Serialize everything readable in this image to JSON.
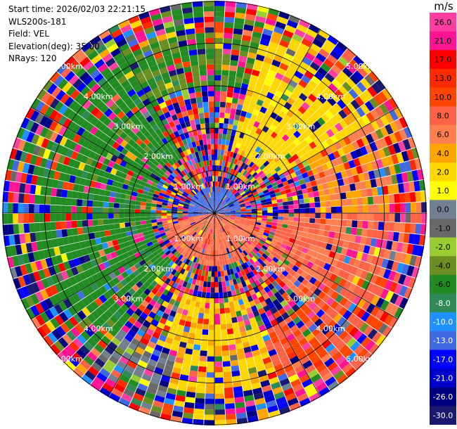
{
  "info": {
    "start_time": "Start time: 2026/02/03 22:21:15",
    "instrument": "WLS200s-181",
    "field": "Field: VEL",
    "elevation": "Elevation(deg): 35.00",
    "nrays": "NRays: 120"
  },
  "colorbar": {
    "units": "m/s",
    "ticks": [
      "26.0",
      "21.0",
      "17.0",
      "13.0",
      "10.0",
      "8.0",
      "6.0",
      "4.0",
      "2.0",
      "1.0",
      "0.0",
      "-1.0",
      "-2.0",
      "-4.0",
      "-6.0",
      "-8.0",
      "-10.0",
      "-13.0",
      "-17.0",
      "-21.0",
      "-26.0",
      "-30.0"
    ],
    "colors": [
      "#ff3fa0",
      "#ff1493",
      "#ff0000",
      "#ff2a00",
      "#ff4500",
      "#ff6347",
      "#ff7f50",
      "#ffa500",
      "#ffd700",
      "#ffff00",
      "#708090",
      "#696969",
      "#9acd32",
      "#6b8e23",
      "#228b22",
      "#2e8b57",
      "#1e90ff",
      "#4169e1",
      "#0000ff",
      "#0000cd",
      "#000080",
      "#191970"
    ]
  },
  "chart_data": {
    "type": "heatmap",
    "projection": "polar (PPI)",
    "field": "VEL",
    "units": "m/s",
    "nrays": 120,
    "max_range_km": 5.0,
    "range_rings_km": [
      1,
      2,
      3,
      4,
      5
    ],
    "ring_labels": [
      "1.00km",
      "2.00km",
      "3.00km",
      "4.00km",
      "5.00km"
    ],
    "spokes_deg": [
      0,
      30,
      60,
      90,
      120,
      150,
      180,
      210,
      240,
      270,
      300,
      330
    ],
    "color_scale": [
      -30,
      -26,
      -21,
      -17,
      -13,
      -10,
      -8,
      -6,
      -4,
      -2,
      -1,
      0,
      1,
      2,
      4,
      6,
      8,
      10,
      13,
      17,
      21,
      26,
      30
    ],
    "sectors": [
      {
        "az_from": 15,
        "az_to": 60,
        "r_from_km": 1.5,
        "r_to_km": 5.0,
        "velocity": 3
      },
      {
        "az_from": 60,
        "az_to": 90,
        "r_from_km": 2.5,
        "r_to_km": 5.0,
        "velocity": 6
      },
      {
        "az_from": 90,
        "az_to": 135,
        "r_from_km": 1.5,
        "r_to_km": 5.0,
        "velocity": 8
      },
      {
        "az_from": 120,
        "az_to": 165,
        "r_from_km": 3.0,
        "r_to_km": 5.0,
        "velocity": 10
      },
      {
        "az_from": 160,
        "az_to": 200,
        "r_from_km": 2.0,
        "r_to_km": 5.0,
        "velocity": 3.5
      },
      {
        "az_from": 195,
        "az_to": 220,
        "r_from_km": 3.5,
        "r_to_km": 5.0,
        "velocity": 0
      },
      {
        "az_from": 220,
        "az_to": 330,
        "r_from_km": 1.5,
        "r_to_km": 5.0,
        "velocity": -5
      },
      {
        "az_from": 330,
        "az_to": 360,
        "r_from_km": 3.0,
        "r_to_km": 5.0,
        "velocity": -4
      },
      {
        "az_from": 0,
        "az_to": 15,
        "r_from_km": 3.0,
        "r_to_km": 5.0,
        "velocity": -4
      },
      {
        "az_from": 100,
        "az_to": 260,
        "r_from_km": 0.0,
        "r_to_km": 1.2,
        "velocity": 8
      },
      {
        "az_from": 260,
        "az_to": 100,
        "r_from_km": 0.0,
        "r_to_km": 0.6,
        "velocity": -11
      }
    ]
  }
}
